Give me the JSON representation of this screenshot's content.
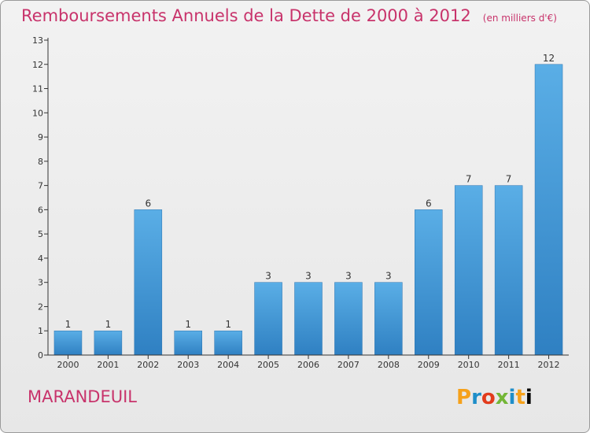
{
  "header": {
    "title": "Remboursements Annuels de la Dette de 2000 à 2012",
    "subtitle": "(en milliers d'€)"
  },
  "footer": {
    "commune": "MARANDEUIL",
    "logo": "Proxiti"
  },
  "colors": {
    "title": "#c8336b",
    "bar_top": "#5aaee6",
    "bar_bottom": "#2f80c2",
    "axis": "#333333"
  },
  "chart_data": {
    "type": "bar",
    "categories": [
      "2000",
      "2001",
      "2002",
      "2003",
      "2004",
      "2005",
      "2006",
      "2007",
      "2008",
      "2009",
      "2010",
      "2011",
      "2012"
    ],
    "values": [
      1,
      1,
      6,
      1,
      1,
      3,
      3,
      3,
      3,
      6,
      7,
      7,
      12
    ],
    "title": "Remboursements Annuels de la Dette de 2000 à 2012",
    "subtitle": "(en milliers d'€)",
    "ylim": [
      0,
      13
    ],
    "yticks": [
      0,
      1,
      2,
      3,
      4,
      5,
      6,
      7,
      8,
      9,
      10,
      11,
      12,
      13
    ],
    "grid": false,
    "legend": "none"
  }
}
